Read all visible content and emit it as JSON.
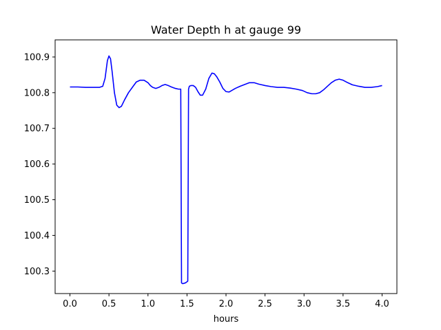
{
  "chart_data": {
    "type": "line",
    "title": "Water Depth h at gauge 99",
    "xlabel": "hours",
    "ylabel": "",
    "xlim": [
      -0.19,
      4.19
    ],
    "ylim": [
      100.237,
      100.948
    ],
    "xticks": [
      0.0,
      0.5,
      1.0,
      1.5,
      2.0,
      2.5,
      3.0,
      3.5,
      4.0
    ],
    "xtick_labels": [
      "0.0",
      "0.5",
      "1.0",
      "1.5",
      "2.0",
      "2.5",
      "3.0",
      "3.5",
      "4.0"
    ],
    "yticks": [
      100.3,
      100.4,
      100.5,
      100.6,
      100.7,
      100.8,
      100.9
    ],
    "ytick_labels": [
      "100.3",
      "100.4",
      "100.5",
      "100.6",
      "100.7",
      "100.8",
      "100.9"
    ],
    "grid": false,
    "series": [
      {
        "color": "#0000ff",
        "x": [
          0.0,
          0.1,
          0.2,
          0.3,
          0.38,
          0.42,
          0.45,
          0.48,
          0.5,
          0.52,
          0.54,
          0.57,
          0.6,
          0.63,
          0.66,
          0.7,
          0.75,
          0.8,
          0.85,
          0.9,
          0.95,
          1.0,
          1.03,
          1.06,
          1.1,
          1.14,
          1.18,
          1.22,
          1.26,
          1.3,
          1.35,
          1.39,
          1.42,
          1.43,
          1.44,
          1.45,
          1.48,
          1.5,
          1.51,
          1.52,
          1.53,
          1.55,
          1.58,
          1.61,
          1.64,
          1.67,
          1.7,
          1.74,
          1.78,
          1.82,
          1.85,
          1.88,
          1.92,
          1.96,
          2.0,
          2.04,
          2.08,
          2.12,
          2.18,
          2.24,
          2.3,
          2.36,
          2.42,
          2.5,
          2.58,
          2.66,
          2.74,
          2.82,
          2.9,
          2.98,
          3.04,
          3.1,
          3.15,
          3.2,
          3.25,
          3.3,
          3.35,
          3.4,
          3.45,
          3.5,
          3.56,
          3.62,
          3.7,
          3.78,
          3.86,
          3.94,
          4.0
        ],
        "y": [
          100.816,
          100.816,
          100.815,
          100.815,
          100.815,
          100.818,
          100.84,
          100.89,
          100.903,
          100.895,
          100.86,
          100.8,
          100.765,
          100.758,
          100.762,
          100.78,
          100.8,
          100.815,
          100.83,
          100.835,
          100.835,
          100.828,
          100.82,
          100.815,
          100.812,
          100.815,
          100.82,
          100.823,
          100.82,
          100.816,
          100.812,
          100.81,
          100.81,
          100.267,
          100.265,
          100.265,
          100.267,
          100.27,
          100.272,
          100.81,
          100.818,
          100.82,
          100.82,
          100.815,
          100.803,
          100.793,
          100.793,
          100.81,
          100.84,
          100.855,
          100.853,
          100.845,
          100.83,
          100.812,
          100.803,
          100.802,
          100.807,
          100.812,
          100.818,
          100.823,
          100.828,
          100.828,
          100.824,
          100.82,
          100.817,
          100.815,
          100.815,
          100.813,
          100.81,
          100.806,
          100.8,
          100.797,
          100.797,
          100.8,
          100.808,
          100.818,
          100.828,
          100.835,
          100.838,
          100.835,
          100.828,
          100.822,
          100.818,
          100.815,
          100.815,
          100.817,
          100.82
        ]
      }
    ]
  }
}
